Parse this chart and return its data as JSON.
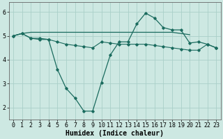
{
  "xlabel": "Humidex (Indice chaleur)",
  "background_color": "#cde8e2",
  "grid_color": "#aacfc8",
  "line_color": "#1a6b5e",
  "ylim": [
    1.5,
    6.4
  ],
  "yticks": [
    2,
    3,
    4,
    5,
    6
  ],
  "xticks": [
    0,
    1,
    2,
    3,
    4,
    5,
    6,
    7,
    8,
    9,
    10,
    11,
    12,
    13,
    14,
    15,
    16,
    17,
    18,
    19,
    20,
    21,
    22,
    23
  ],
  "xlabel_fontsize": 7,
  "tick_fontsize": 6,
  "line1_x": [
    0,
    1,
    2,
    3,
    4,
    5,
    6,
    7,
    8,
    9,
    10,
    11,
    12,
    13,
    14,
    15,
    16,
    17,
    18,
    19,
    20
  ],
  "line1_y": [
    5.0,
    5.1,
    5.15,
    5.15,
    5.15,
    5.15,
    5.15,
    5.15,
    5.15,
    5.15,
    5.15,
    5.15,
    5.15,
    5.15,
    5.15,
    5.15,
    5.15,
    5.15,
    5.15,
    5.1,
    5.05
  ],
  "line2_x": [
    0,
    1,
    2,
    3,
    4,
    5,
    6,
    7,
    8,
    9,
    10,
    11,
    12,
    13,
    14,
    15,
    16,
    17,
    18,
    19,
    20,
    21,
    22,
    23
  ],
  "line2_y": [
    5.0,
    5.1,
    4.9,
    4.9,
    4.85,
    4.75,
    4.65,
    4.6,
    4.55,
    4.5,
    4.75,
    4.7,
    4.65,
    4.65,
    4.65,
    4.65,
    4.6,
    4.55,
    4.5,
    4.45,
    4.4,
    4.4,
    4.65,
    4.5
  ],
  "line3_x": [
    0,
    1,
    2,
    3,
    4,
    5,
    6,
    7,
    8,
    9,
    10,
    11,
    12,
    13,
    14,
    15,
    16,
    17,
    18,
    19,
    20,
    21,
    22,
    23
  ],
  "line3_y": [
    5.0,
    5.1,
    4.9,
    4.85,
    4.85,
    3.6,
    2.8,
    2.4,
    1.85,
    1.85,
    3.05,
    4.2,
    4.75,
    4.75,
    5.5,
    5.95,
    5.75,
    5.35,
    5.25,
    5.25,
    4.7,
    4.75,
    4.65,
    4.5
  ]
}
